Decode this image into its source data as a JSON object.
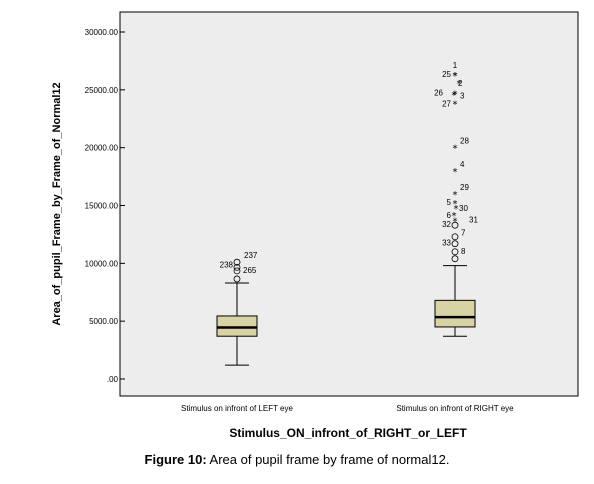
{
  "chart_data": {
    "type": "box",
    "ylabel": "Area_of_pupil_Frame_by_Frame_of_Normal12",
    "xlabel": "Stimulus_ON_infront_of_RIGHT_or_LEFT",
    "ylim": [
      0,
      30000
    ],
    "yticks": [
      0,
      5000,
      10000,
      15000,
      20000,
      25000,
      30000
    ],
    "ytick_labels": [
      ".00",
      "5000.00",
      "10000.00",
      "15000.00",
      "20000.00",
      "25000.00",
      "30000.00"
    ],
    "plot_background": "#ededed",
    "box_fill": "#d7d3a4",
    "categories": [
      "Stimulus on infront of LEFT eye",
      "Stimulus on infront of RIGHT eye"
    ],
    "boxes": [
      {
        "whisker_low": 1200,
        "q1": 3700,
        "median": 4450,
        "q3": 5450,
        "whisker_high": 8300
      },
      {
        "whisker_low": 3700,
        "q1": 4500,
        "median": 5350,
        "q3": 6800,
        "whisker_high": 9800
      }
    ],
    "outliers": [
      {
        "group": 0,
        "kind": "circle",
        "label": "237",
        "y": 10100
      },
      {
        "group": 0,
        "kind": "circle",
        "label": "238",
        "y": 9650
      },
      {
        "group": 0,
        "kind": "circle",
        "label": "",
        "y": 9350
      },
      {
        "group": 0,
        "kind": "circle",
        "label": "265",
        "y": 8650
      },
      {
        "group": 1,
        "kind": "circle",
        "label": "33",
        "y": 11700
      },
      {
        "group": 1,
        "kind": "circle",
        "label": "7",
        "y": 12300
      },
      {
        "group": 1,
        "kind": "circle",
        "label": "8",
        "y": 11000
      },
      {
        "group": 1,
        "kind": "circle",
        "label": "",
        "y": 10400
      },
      {
        "group": 1,
        "kind": "circle",
        "label": "32",
        "y": 13300
      },
      {
        "group": 1,
        "kind": "star",
        "label": "1",
        "y": 26300
      },
      {
        "group": 1,
        "kind": "star",
        "label": "25",
        "y": 26300
      },
      {
        "group": 1,
        "kind": "star",
        "label": "2",
        "y": 25600
      },
      {
        "group": 1,
        "kind": "star",
        "label": "26",
        "y": 24700
      },
      {
        "group": 1,
        "kind": "star",
        "label": "3",
        "y": 24600
      },
      {
        "group": 1,
        "kind": "star",
        "label": "27",
        "y": 23800
      },
      {
        "group": 1,
        "kind": "star",
        "label": "28",
        "y": 20000
      },
      {
        "group": 1,
        "kind": "star",
        "label": "4",
        "y": 18000
      },
      {
        "group": 1,
        "kind": "star",
        "label": "29",
        "y": 16000
      },
      {
        "group": 1,
        "kind": "star",
        "label": "5",
        "y": 15200
      },
      {
        "group": 1,
        "kind": "star",
        "label": "30",
        "y": 14800
      },
      {
        "group": 1,
        "kind": "star",
        "label": "6",
        "y": 14200
      },
      {
        "group": 1,
        "kind": "star",
        "label": "31",
        "y": 13700
      }
    ]
  },
  "caption": {
    "prefix": "Figure 10:",
    "text": " Area of pupil frame by frame of normal12."
  }
}
